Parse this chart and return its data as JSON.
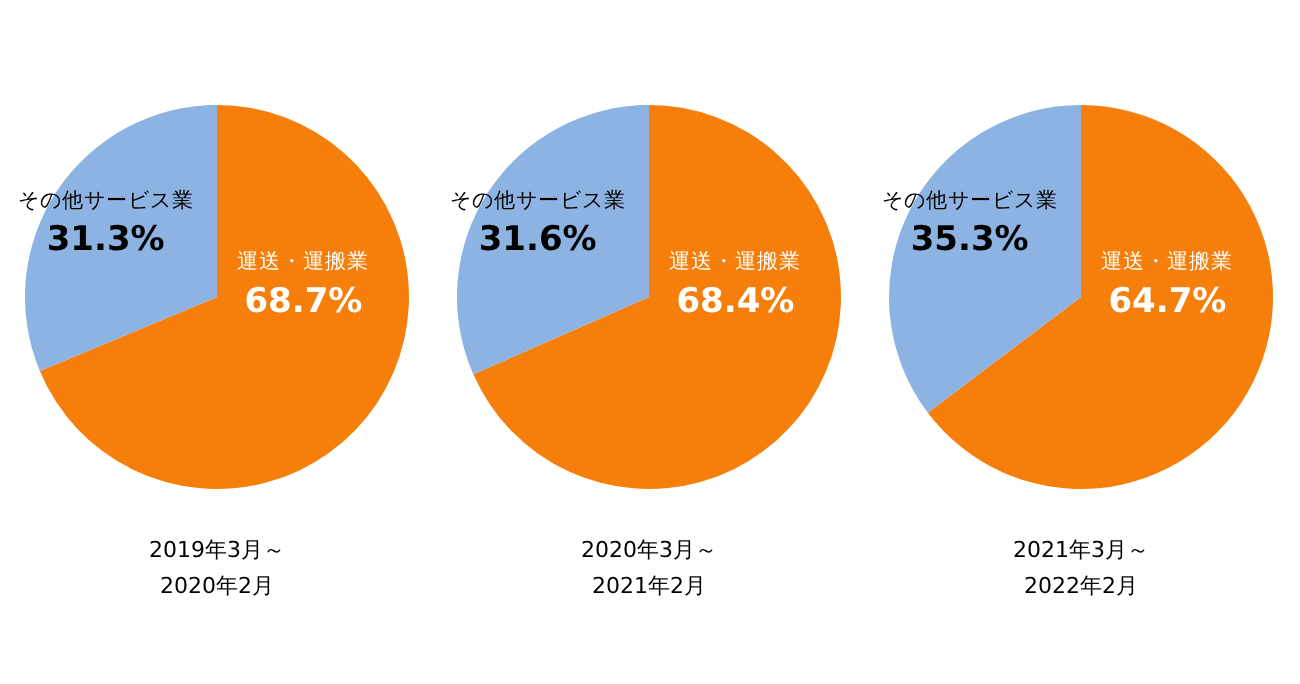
{
  "chart_data": [
    {
      "type": "pie",
      "xlabel": "2019年3月～\n2020年2月",
      "categories": [
        "運送・運搬業",
        "その他サービス業"
      ],
      "values": [
        68.7,
        31.3
      ],
      "value_labels": [
        "68.7%",
        "31.3%"
      ],
      "colors": [
        "#f57f0a",
        "#8db3e2"
      ]
    },
    {
      "type": "pie",
      "xlabel": "2020年3月～\n2021年2月",
      "categories": [
        "運送・運搬業",
        "その他サービス業"
      ],
      "values": [
        68.4,
        31.6
      ],
      "value_labels": [
        "68.4%",
        "31.6%"
      ],
      "colors": [
        "#f57f0a",
        "#8db3e2"
      ]
    },
    {
      "type": "pie",
      "xlabel": "2021年3月～\n2022年2月",
      "categories": [
        "運送・運搬業",
        "その他サービス業"
      ],
      "values": [
        64.7,
        35.3
      ],
      "value_labels": [
        "64.7%",
        "35.3%"
      ],
      "colors": [
        "#f57f0a",
        "#8db3e2"
      ]
    }
  ]
}
